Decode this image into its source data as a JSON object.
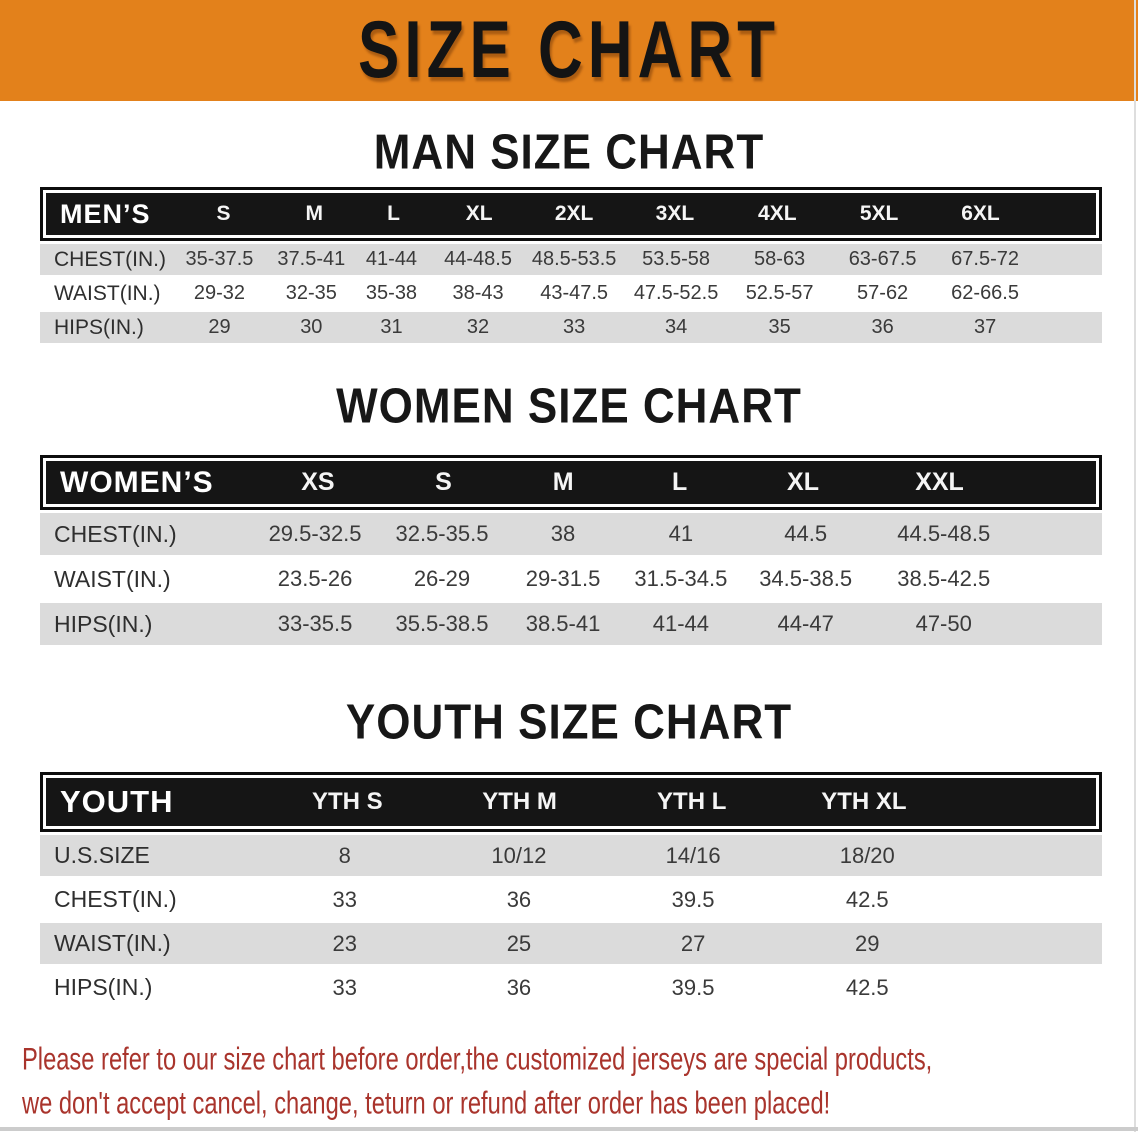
{
  "banner": {
    "title": "SIZE CHART",
    "bg_color": "#E3811B",
    "text_color": "#141414"
  },
  "sections": [
    {
      "heading": "MAN SIZE CHART",
      "table": {
        "header_label": "MEN’S",
        "columns": [
          "S",
          "M",
          "L",
          "XL",
          "2XL",
          "3XL",
          "4XL",
          "5XL",
          "6XL"
        ],
        "rows": [
          {
            "label": "CHEST(IN.)",
            "values": [
              "35-37.5",
              "37.5-41",
              "41-44",
              "44-48.5",
              "48.5-53.5",
              "53.5-58",
              "58-63",
              "63-67.5",
              "67.5-72"
            ]
          },
          {
            "label": "WAIST(IN.)",
            "values": [
              "29-32",
              "32-35",
              "35-38",
              "38-43",
              "43-47.5",
              "47.5-52.5",
              "52.5-57",
              "57-62",
              "62-66.5"
            ]
          },
          {
            "label": "HIPS(IN.)",
            "values": [
              "29",
              "30",
              "31",
              "32",
              "33",
              "34",
              "35",
              "36",
              "37"
            ]
          }
        ]
      }
    },
    {
      "heading": "WOMEN SIZE CHART",
      "table": {
        "header_label": "WOMEN’S",
        "columns": [
          "XS",
          "S",
          "M",
          "L",
          "XL",
          "XXL"
        ],
        "rows": [
          {
            "label": "CHEST(IN.)",
            "values": [
              "29.5-32.5",
              "32.5-35.5",
              "38",
              "41",
              "44.5",
              "44.5-48.5"
            ]
          },
          {
            "label": "WAIST(IN.)",
            "values": [
              "23.5-26",
              "26-29",
              "29-31.5",
              "31.5-34.5",
              "34.5-38.5",
              "38.5-42.5"
            ]
          },
          {
            "label": "HIPS(IN.)",
            "values": [
              "33-35.5",
              "35.5-38.5",
              "38.5-41",
              "41-44",
              "44-47",
              "47-50"
            ]
          }
        ]
      }
    },
    {
      "heading": "YOUTH SIZE CHART",
      "table": {
        "header_label": "YOUTH",
        "columns": [
          "YTH S",
          "YTH M",
          "YTH L",
          "YTH XL"
        ],
        "rows": [
          {
            "label": "U.S.SIZE",
            "values": [
              "8",
              "10/12",
              "14/16",
              "18/20"
            ]
          },
          {
            "label": "CHEST(IN.)",
            "values": [
              "33",
              "36",
              "39.5",
              "42.5"
            ]
          },
          {
            "label": "WAIST(IN.)",
            "values": [
              "23",
              "25",
              "27",
              "29"
            ]
          },
          {
            "label": "HIPS(IN.)",
            "values": [
              "33",
              "36",
              "39.5",
              "42.5"
            ]
          }
        ]
      }
    }
  ],
  "disclaimer": {
    "line1": "Please refer to our size chart before order,the customized jerseys are special products,",
    "line2": "we don't accept cancel, change, teturn or refund after order has been placed!",
    "color": "#A9342C"
  }
}
